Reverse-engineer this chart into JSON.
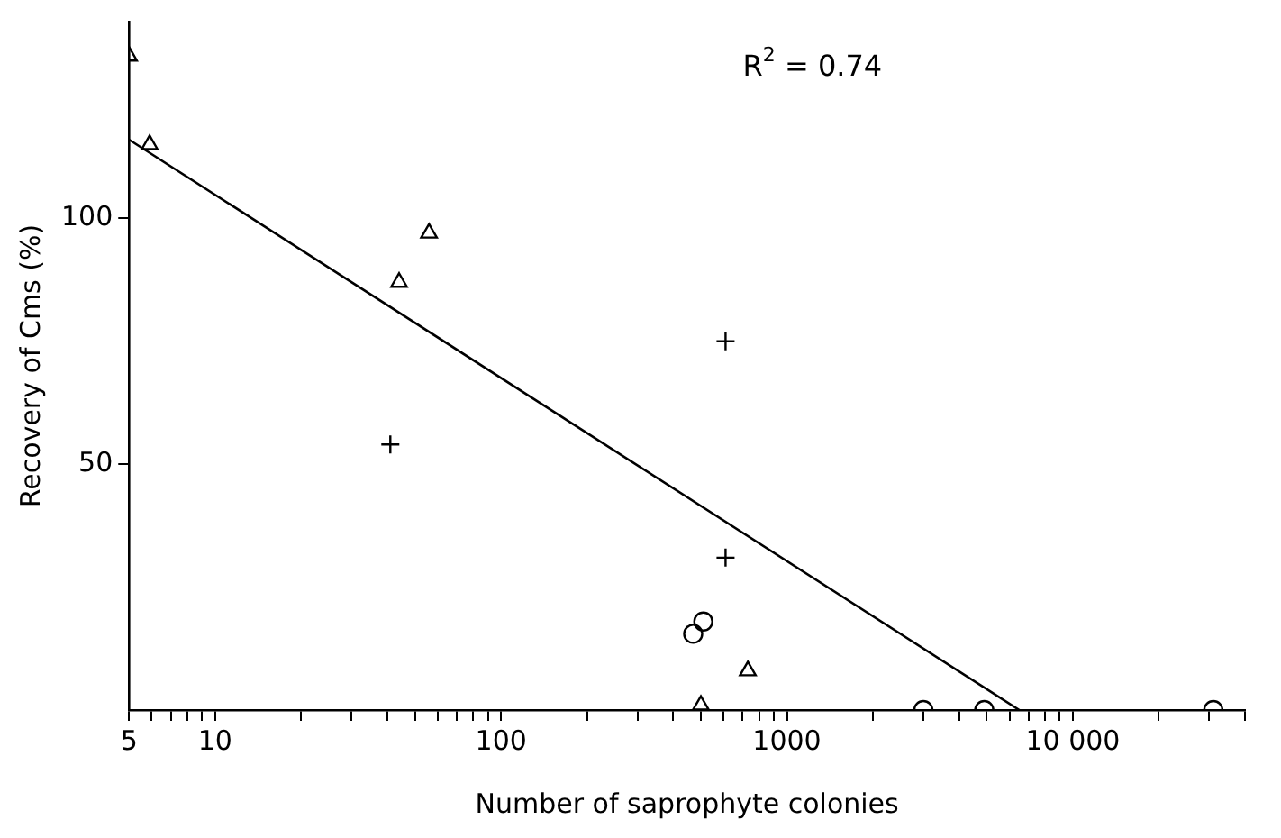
{
  "chart_data": {
    "type": "scatter",
    "xlabel": "Number of saprophyte colonies",
    "ylabel": "Recovery of Cms (%)",
    "log": "x",
    "xlim": [
      5,
      40000
    ],
    "ylim": [
      0,
      140
    ],
    "xticks": [
      5,
      {
        "value": 6,
        "label": null
      },
      {
        "value": 7,
        "label": null
      },
      {
        "value": 8,
        "label": null
      },
      {
        "value": 9,
        "label": null
      },
      10,
      {
        "value": 20,
        "label": null
      },
      {
        "value": 30,
        "label": null
      },
      {
        "value": 40,
        "label": null
      },
      {
        "value": 50,
        "label": null
      },
      {
        "value": 60,
        "label": null
      },
      {
        "value": 70,
        "label": null
      },
      {
        "value": 80,
        "label": null
      },
      {
        "value": 90,
        "label": null
      },
      100,
      {
        "value": 200,
        "label": null
      },
      {
        "value": 300,
        "label": null
      },
      {
        "value": 400,
        "label": null
      },
      {
        "value": 500,
        "label": null
      },
      {
        "value": 600,
        "label": null
      },
      {
        "value": 700,
        "label": null
      },
      {
        "value": 800,
        "label": null
      },
      {
        "value": 900,
        "label": null
      },
      1000,
      {
        "value": 2000,
        "label": null
      },
      {
        "value": 3000,
        "label": null
      },
      {
        "value": 4000,
        "label": null
      },
      {
        "value": 5000,
        "label": null
      },
      {
        "value": 6000,
        "label": null
      },
      {
        "value": 7000,
        "label": null
      },
      {
        "value": 8000,
        "label": null
      },
      {
        "value": 9000,
        "label": null
      },
      {
        "value": 10000,
        "label": "10 000"
      },
      {
        "value": 20000,
        "label": null
      },
      {
        "value": 30000,
        "label": null
      },
      {
        "value": 40000,
        "label": null
      }
    ],
    "yticks": [
      50,
      100
    ],
    "grid": false,
    "legend": false,
    "series": [
      {
        "type": "scatter",
        "marker": "triangle",
        "color": "#000000",
        "x": [
          5,
          5.9,
          44,
          56,
          730,
          500
        ],
        "values": [
          133,
          115,
          87,
          97,
          8,
          1
        ]
      },
      {
        "type": "scatter",
        "marker": "cross",
        "color": "#000000",
        "x": [
          41,
          610,
          610
        ],
        "values": [
          54,
          31,
          75
        ]
      },
      {
        "type": "scatter",
        "marker": "circle",
        "color": "#000000",
        "x": [
          470,
          510,
          3000,
          4900,
          31000
        ],
        "values": [
          15.5,
          18,
          0,
          0,
          0
        ]
      },
      {
        "type": "line",
        "marker": "none",
        "line_style": "solid",
        "color": "#000000",
        "x": [
          5,
          6500
        ],
        "values": [
          116,
          0
        ]
      }
    ],
    "annotations": [
      "R$^{2}$ = 0.74"
    ]
  }
}
